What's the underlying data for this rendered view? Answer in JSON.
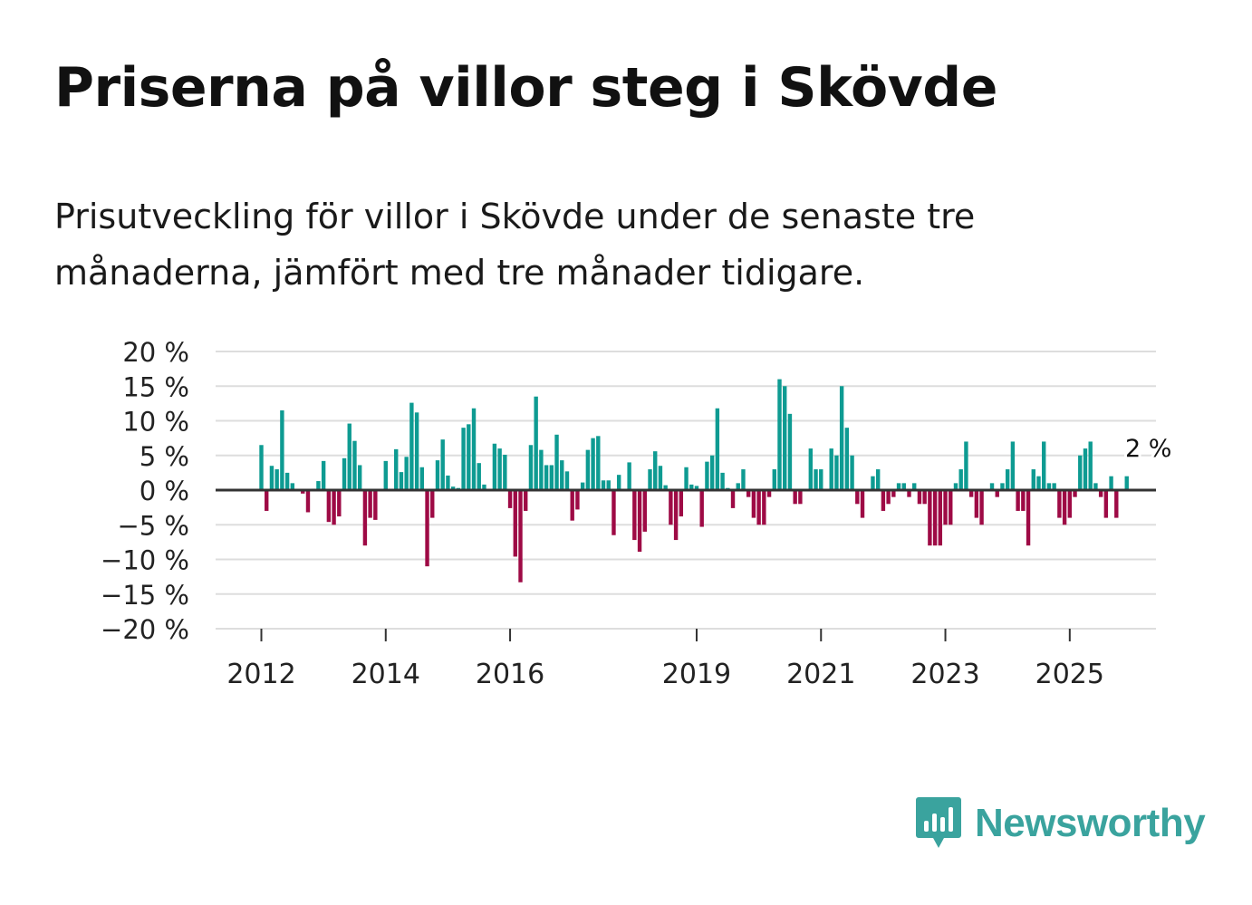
{
  "title": "Priserna på villor steg i Skövde",
  "subtitle": "Prisutveckling för villor i Skövde under de senaste tre månaderna, jämfört med tre månader tidigare.",
  "brand": {
    "name": "Newsworthy",
    "color": "#3aa39e"
  },
  "colors": {
    "positive": "#0e9b92",
    "negative": "#9e0a45",
    "grid": "#dddddd",
    "zero": "#333333"
  },
  "chart_data": {
    "type": "bar",
    "ylim": [
      -20,
      20
    ],
    "yticks": [
      20,
      15,
      10,
      5,
      0,
      -5,
      -10,
      -15,
      -20
    ],
    "ytick_labels": [
      "20 %",
      "15 %",
      "10 %",
      "5 %",
      "0 %",
      "−5 %",
      "−10 %",
      "−15 %",
      "−20 %"
    ],
    "xticks": [
      {
        "label": "2012",
        "index": 0
      },
      {
        "label": "2014",
        "index": 24
      },
      {
        "label": "2016",
        "index": 48
      },
      {
        "label": "2019",
        "index": 84
      },
      {
        "label": "2021",
        "index": 108
      },
      {
        "label": "2023",
        "index": 132
      },
      {
        "label": "2025",
        "index": 156
      }
    ],
    "start": "2012-01",
    "last_label": "2 %",
    "values": [
      6.5,
      -3,
      3.5,
      3,
      11.5,
      2.5,
      1,
      0,
      -0.5,
      -3.2,
      0.2,
      1.3,
      4.2,
      -4.6,
      -5,
      -3.8,
      4.6,
      9.6,
      7.1,
      3.6,
      -8,
      -4,
      -4.3,
      0,
      4.2,
      0,
      5.9,
      2.6,
      4.8,
      12.6,
      11.2,
      3.3,
      -11,
      -4,
      4.3,
      7.3,
      2.1,
      0.5,
      0.3,
      9,
      9.5,
      11.8,
      3.9,
      0.8,
      0,
      6.7,
      6,
      5.1,
      -2.6,
      -9.6,
      -13.3,
      -3,
      6.5,
      13.5,
      5.8,
      3.6,
      3.6,
      8,
      4.3,
      2.7,
      -4.4,
      -2.8,
      1.1,
      5.8,
      7.5,
      7.8,
      1.4,
      1.4,
      -6.5,
      2.2,
      0,
      4,
      -7.2,
      -8.9,
      -6,
      3,
      5.6,
      3.5,
      0.7,
      -5,
      -7.2,
      -3.8,
      3.3,
      0.8,
      0.6,
      -5.3,
      4.1,
      5,
      11.8,
      2.5,
      0.3,
      -2.6,
      1,
      3,
      -1,
      -4,
      -5,
      -5,
      -1,
      3,
      16,
      15,
      11,
      -2,
      -2,
      0,
      6,
      3,
      3,
      0,
      6,
      5,
      15,
      9,
      5,
      -2,
      -4,
      0,
      2,
      3,
      -3,
      -2,
      -1,
      1,
      1,
      -1,
      1,
      -2,
      -2,
      -8,
      -8,
      -8,
      -5,
      -5,
      1,
      3,
      7,
      -1,
      -4,
      -5,
      0,
      1,
      -1,
      1,
      3,
      7,
      -3,
      -3,
      -8,
      3,
      2,
      7,
      1,
      1,
      -4,
      -5,
      -4,
      -1,
      5,
      6,
      7,
      1,
      -1,
      -4,
      2,
      -4,
      0,
      2
    ]
  }
}
